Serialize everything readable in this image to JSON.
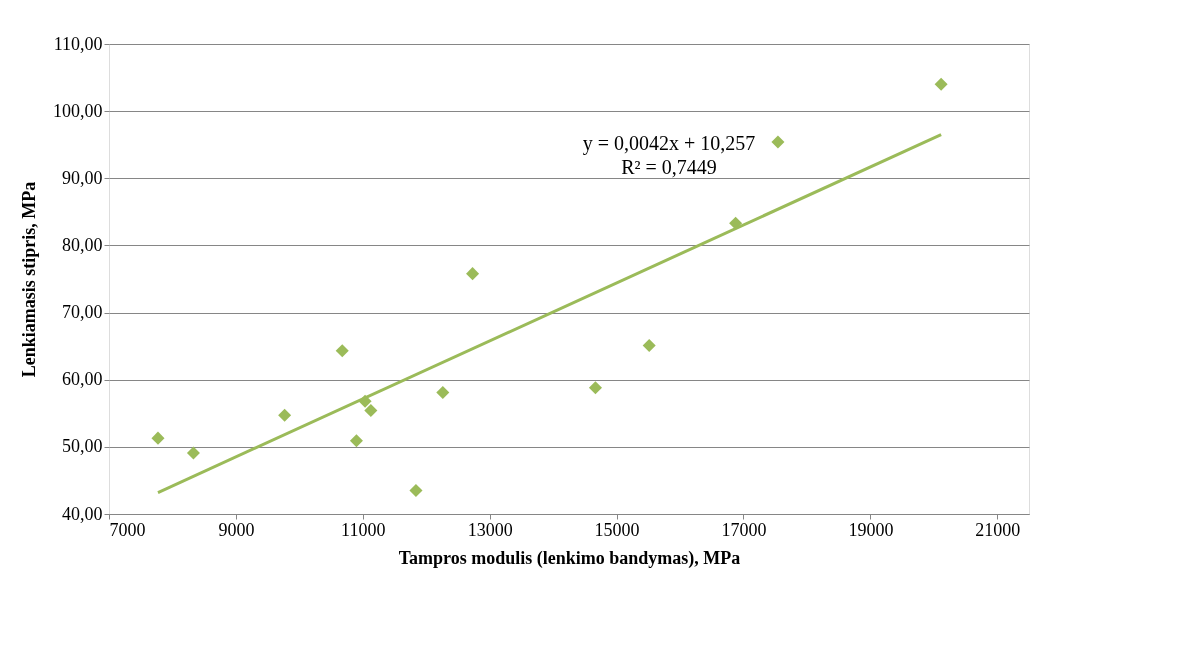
{
  "chart_data": {
    "type": "scatter",
    "xlabel": "Tampros modulis (lenkimo bandymas), MPa",
    "ylabel": "Lenkiamasis stipris, MPa",
    "series": [
      {
        "color": "#9bbb59",
        "marker": "diamond",
        "x": [
          7772,
          8331,
          9768,
          10676,
          10900,
          11036,
          11127,
          11838,
          12261,
          12730,
          14667,
          15514,
          16876,
          17543,
          20115
        ],
        "values": [
          51.3,
          49.1,
          54.7,
          64.3,
          50.9,
          56.8,
          55.4,
          43.5,
          58.1,
          75.8,
          58.8,
          65.1,
          83.3,
          95.4,
          104.0
        ]
      },
      {
        "type": "line",
        "color": "#9bbb59",
        "marker": "none",
        "x": [
          7772,
          20115
        ],
        "values": [
          43.2,
          96.5
        ]
      }
    ],
    "xlim": [
      7000,
      21500
    ],
    "xticks": [
      7000,
      9000,
      11000,
      13000,
      15000,
      17000,
      19000,
      21000
    ],
    "ylim": [
      40,
      110
    ],
    "yticks": [
      {
        "value": 40,
        "label": "40,00"
      },
      {
        "value": 50,
        "label": "50,00"
      },
      {
        "value": 60,
        "label": "60,00"
      },
      {
        "value": 70,
        "label": "70,00"
      },
      {
        "value": 80,
        "label": "80,00"
      },
      {
        "value": 90,
        "label": "90,00"
      },
      {
        "value": 100,
        "label": "100,00"
      },
      {
        "value": 110,
        "label": "110,00"
      }
    ],
    "grid": "y",
    "annotations": [
      "y = 0,0042x + 10,257\nR² = 0,7449"
    ]
  }
}
